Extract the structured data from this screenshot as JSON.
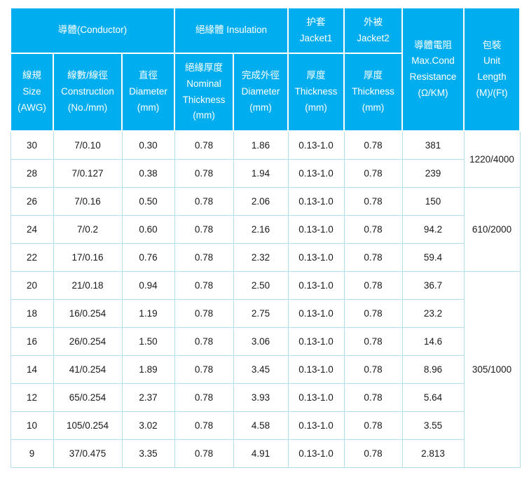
{
  "table": {
    "colors": {
      "header_bg": "#00AEF0",
      "header_text": "#FFFFFF",
      "cell_border": "#B4DEEF",
      "cell_text": "#1A1A1A"
    },
    "header": {
      "groups": {
        "conductor": "導體(Conductor)",
        "insulation": "絕緣體 Insulation",
        "jacket1": "护套\nJacket1",
        "jacket2": "外被\nJacket2",
        "resistance": "導體電阻\nMax.Cond\nResistance\n(Ω/KM)",
        "package": "包裝\nUnit\nLength\n(M)/(Ft)"
      },
      "columns": {
        "size": "線規\nSize\n(AWG)",
        "construction": "線數/線徑\nConstruction\n(No./mm)",
        "conductor_diameter": "直徑\nDiameter\n(mm)",
        "insulation_thickness": "絕緣厚度\nNominal\nThickness\n(mm)",
        "finished_diameter": "完成外徑\nDiameter\n(mm)",
        "jacket1_thickness": "厚度\nThickness\n(mm)",
        "jacket2_thickness": "厚度\nThickness\n(mm)"
      }
    },
    "column_keys": [
      "size",
      "construction",
      "conductor-diameter",
      "insulation-thickness",
      "finished-diameter",
      "jacket1-thickness",
      "jacket2-thickness",
      "resistance",
      "unit-length"
    ],
    "rows": [
      {
        "cells": [
          {
            "v": "30"
          },
          {
            "v": "7/0.10"
          },
          {
            "v": "0.30"
          },
          {
            "v": "0.78"
          },
          {
            "v": "1.86"
          },
          {
            "v": "0.13-1.0"
          },
          {
            "v": "0.78"
          },
          {
            "v": "381"
          },
          {
            "v": "1220/4000",
            "rowspan": 2
          }
        ]
      },
      {
        "cells": [
          {
            "v": "28"
          },
          {
            "v": "7/0.127"
          },
          {
            "v": "0.38"
          },
          {
            "v": "0.78"
          },
          {
            "v": "1.94"
          },
          {
            "v": "0.13-1.0"
          },
          {
            "v": "0.78"
          },
          {
            "v": "239"
          }
        ]
      },
      {
        "cells": [
          {
            "v": "26"
          },
          {
            "v": "7/0.16"
          },
          {
            "v": "0.50"
          },
          {
            "v": "0.78"
          },
          {
            "v": "2.06"
          },
          {
            "v": "0.13-1.0"
          },
          {
            "v": "0.78"
          },
          {
            "v": "150"
          },
          {
            "v": "610/2000",
            "rowspan": 3
          }
        ]
      },
      {
        "cells": [
          {
            "v": "24"
          },
          {
            "v": "7/0.2"
          },
          {
            "v": "0.60"
          },
          {
            "v": "0.78"
          },
          {
            "v": "2.16"
          },
          {
            "v": "0.13-1.0"
          },
          {
            "v": "0.78"
          },
          {
            "v": "94.2"
          }
        ]
      },
      {
        "cells": [
          {
            "v": "22"
          },
          {
            "v": "17/0.16"
          },
          {
            "v": "0.76"
          },
          {
            "v": "0.78"
          },
          {
            "v": "2.32"
          },
          {
            "v": "0.13-1.0"
          },
          {
            "v": "0.78"
          },
          {
            "v": "59.4"
          }
        ]
      },
      {
        "cells": [
          {
            "v": "20"
          },
          {
            "v": "21/0.18"
          },
          {
            "v": "0.94"
          },
          {
            "v": "0.78"
          },
          {
            "v": "2.50"
          },
          {
            "v": "0.13-1.0"
          },
          {
            "v": "0.78"
          },
          {
            "v": "36.7"
          },
          {
            "v": "305/1000",
            "rowspan": 7
          }
        ]
      },
      {
        "cells": [
          {
            "v": "18"
          },
          {
            "v": "16/0.254"
          },
          {
            "v": "1.19"
          },
          {
            "v": "0.78"
          },
          {
            "v": "2.75"
          },
          {
            "v": "0.13-1.0"
          },
          {
            "v": "0.78"
          },
          {
            "v": "23.2"
          }
        ]
      },
      {
        "cells": [
          {
            "v": "16"
          },
          {
            "v": "26/0.254"
          },
          {
            "v": "1.50"
          },
          {
            "v": "0.78"
          },
          {
            "v": "3.06"
          },
          {
            "v": "0.13-1.0"
          },
          {
            "v": "0.78"
          },
          {
            "v": "14.6"
          }
        ]
      },
      {
        "cells": [
          {
            "v": "14"
          },
          {
            "v": "41/0.254"
          },
          {
            "v": "1.89"
          },
          {
            "v": "0.78"
          },
          {
            "v": "3.45"
          },
          {
            "v": "0.13-1.0"
          },
          {
            "v": "0.78"
          },
          {
            "v": "8.96"
          }
        ]
      },
      {
        "cells": [
          {
            "v": "12"
          },
          {
            "v": "65/0.254"
          },
          {
            "v": "2.37"
          },
          {
            "v": "0.78"
          },
          {
            "v": "3.93"
          },
          {
            "v": "0.13-1.0"
          },
          {
            "v": "0.78"
          },
          {
            "v": "5.64"
          }
        ]
      },
      {
        "cells": [
          {
            "v": "10"
          },
          {
            "v": "105/0.254"
          },
          {
            "v": "3.02"
          },
          {
            "v": "0.78"
          },
          {
            "v": "4.58"
          },
          {
            "v": "0.13-1.0"
          },
          {
            "v": "0.78"
          },
          {
            "v": "3.55"
          }
        ]
      },
      {
        "cells": [
          {
            "v": "9"
          },
          {
            "v": "37/0.475"
          },
          {
            "v": "3.35"
          },
          {
            "v": "0.78"
          },
          {
            "v": "4.91"
          },
          {
            "v": "0.13-1.0"
          },
          {
            "v": "0.78"
          },
          {
            "v": "2.813"
          }
        ]
      }
    ]
  }
}
